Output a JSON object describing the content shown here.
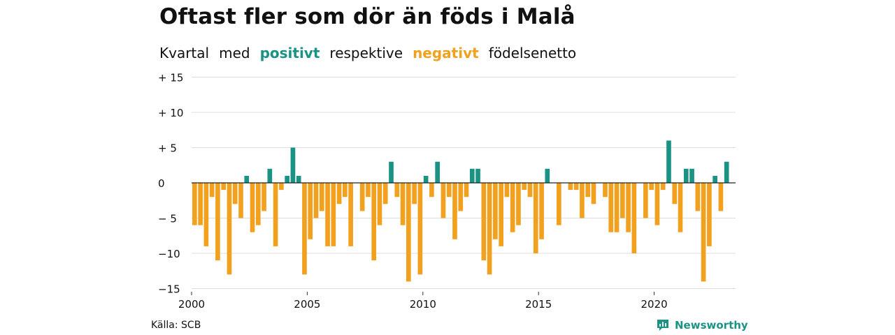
{
  "title": "Oftast fler som dör än föds i Malå",
  "subtitle": {
    "w1": "Kvartal",
    "w2": "med",
    "w3": "positivt",
    "w4": "respektive",
    "w5": "negativt",
    "w6": "födelsenetto"
  },
  "source": "Källa: SCB",
  "brand": {
    "name": "Newsworthy",
    "icon": "newsworthy-logo-icon"
  },
  "colors": {
    "positive": "#1a9385",
    "negative": "#f2a11f",
    "grid": "#dddddd",
    "zero": "#222222"
  },
  "chart_data": {
    "type": "bar",
    "x_start": "2000 Q1",
    "x_tick_labels": [
      "2000",
      "2005",
      "2010",
      "2015",
      "2020"
    ],
    "y_tick_labels": [
      "+ 15",
      "+ 10",
      "+  5",
      "0",
      "− 5",
      "−10",
      "−15"
    ],
    "ylim": [
      -15,
      15
    ],
    "grid": true,
    "values": [
      -6,
      -6,
      -9,
      -2,
      -11,
      -1,
      -13,
      -3,
      -5,
      1,
      -7,
      -6,
      -4,
      2,
      -9,
      -1,
      1,
      5,
      1,
      -13,
      -8,
      -5,
      -4,
      -9,
      -9,
      -3,
      -2,
      -9,
      0,
      -4,
      -2,
      -11,
      -6,
      -3,
      3,
      -2,
      -6,
      -14,
      -3,
      -13,
      1,
      -2,
      3,
      -5,
      -2,
      -8,
      -4,
      -2,
      2,
      2,
      -11,
      -13,
      -8,
      -9,
      -2,
      -7,
      -6,
      -1,
      -2,
      -10,
      -8,
      2,
      0,
      -6,
      0,
      -1,
      -1,
      -5,
      -2,
      -3,
      0,
      -2,
      -7,
      -7,
      -5,
      -7,
      -10,
      0,
      -5,
      -1,
      -6,
      -1,
      6,
      -3,
      -7,
      2,
      2,
      -4,
      -14,
      -9,
      1,
      -4,
      3
    ]
  }
}
